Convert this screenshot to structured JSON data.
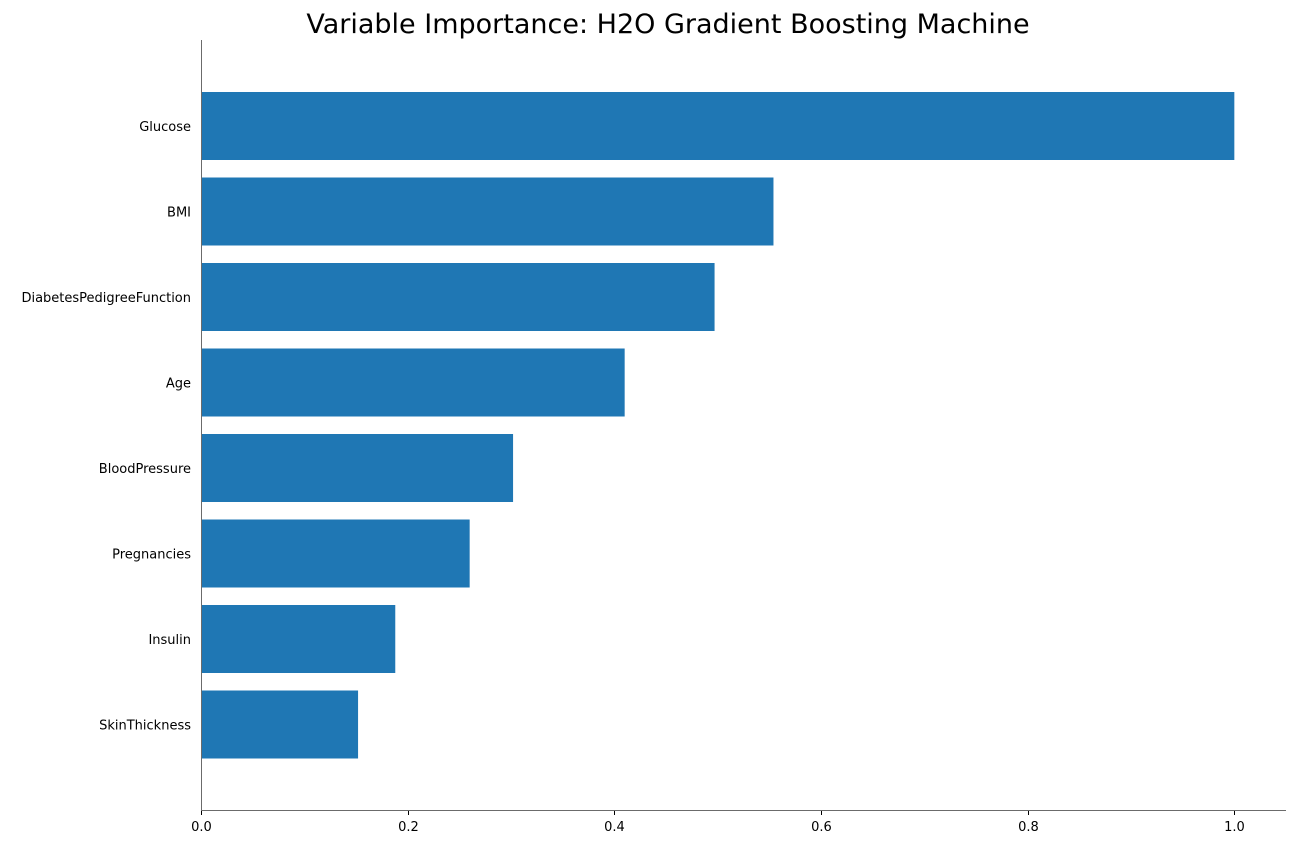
{
  "chart_data": {
    "type": "bar",
    "orientation": "horizontal",
    "title": "Variable Importance: H2O Gradient Boosting Machine",
    "xlabel": "",
    "ylabel": "",
    "categories": [
      "Glucose",
      "BMI",
      "DiabetesPedigreeFunction",
      "Age",
      "BloodPressure",
      "Pregnancies",
      "Insulin",
      "SkinThickness"
    ],
    "values": [
      1.0,
      0.554,
      0.497,
      0.41,
      0.302,
      0.26,
      0.188,
      0.152
    ],
    "xlim": [
      0.0,
      1.05
    ],
    "xticks": [
      0.0,
      0.2,
      0.4,
      0.6,
      0.8,
      1.0
    ],
    "xtick_labels": [
      "0.0",
      "0.2",
      "0.4",
      "0.6",
      "0.8",
      "1.0"
    ],
    "bar_color": "#1f77b4",
    "grid": false,
    "legend": "none"
  }
}
